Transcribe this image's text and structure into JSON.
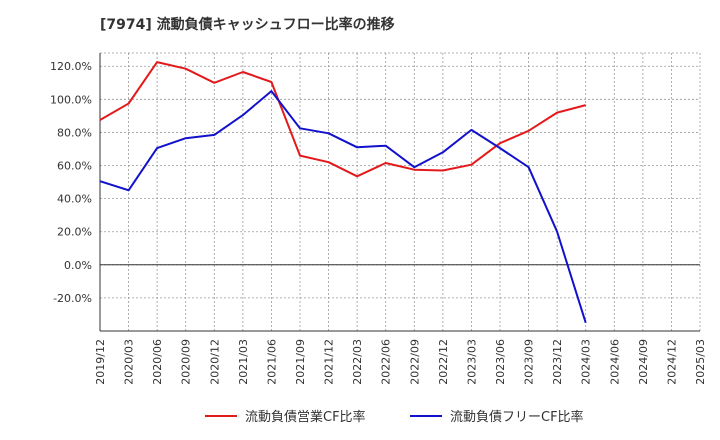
{
  "colors": {
    "operating_cf_ratio": "#e31a1c",
    "free_cf_ratio": "#1212cc",
    "grid": "#999999",
    "axis": "#333333"
  },
  "chart_data": {
    "type": "line",
    "title": "[7974]  流動負債キャッシュフロー比率の推移",
    "xlabel": "",
    "ylabel": "",
    "ylim": [
      -40,
      128
    ],
    "yticks": [
      120,
      100,
      80,
      60,
      40,
      20,
      0,
      -20
    ],
    "ytick_labels": [
      "120.0%",
      "100.0%",
      "80.0%",
      "60.0%",
      "40.0%",
      "20.0%",
      "0.0%",
      "-20.0%"
    ],
    "grid": true,
    "legend_position": "bottom",
    "categories": [
      "2019/12",
      "2020/03",
      "2020/06",
      "2020/09",
      "2020/12",
      "2021/03",
      "2021/06",
      "2021/09",
      "2021/12",
      "2022/03",
      "2022/06",
      "2022/09",
      "2022/12",
      "2023/03",
      "2023/06",
      "2023/09",
      "2023/12",
      "2024/03",
      "2024/06",
      "2024/09",
      "2024/12",
      "2025/03"
    ],
    "series": [
      {
        "name": "流動負債営業CF比率",
        "color": "#e31a1c",
        "values": [
          87.5,
          97.5,
          122.5,
          118.5,
          110,
          116.5,
          110.5,
          66,
          62,
          53.5,
          61.5,
          57.5,
          57,
          60.5,
          73.5,
          81,
          92,
          96.5,
          null,
          null,
          null,
          null
        ]
      },
      {
        "name": "流動負債フリーCF比率",
        "color": "#1212cc",
        "values": [
          50.5,
          45,
          70.5,
          76.5,
          78.5,
          90.5,
          105,
          82.5,
          79.5,
          71,
          72,
          59,
          68,
          81.5,
          70.5,
          59,
          20,
          -35,
          null,
          null,
          null,
          null
        ]
      }
    ]
  }
}
